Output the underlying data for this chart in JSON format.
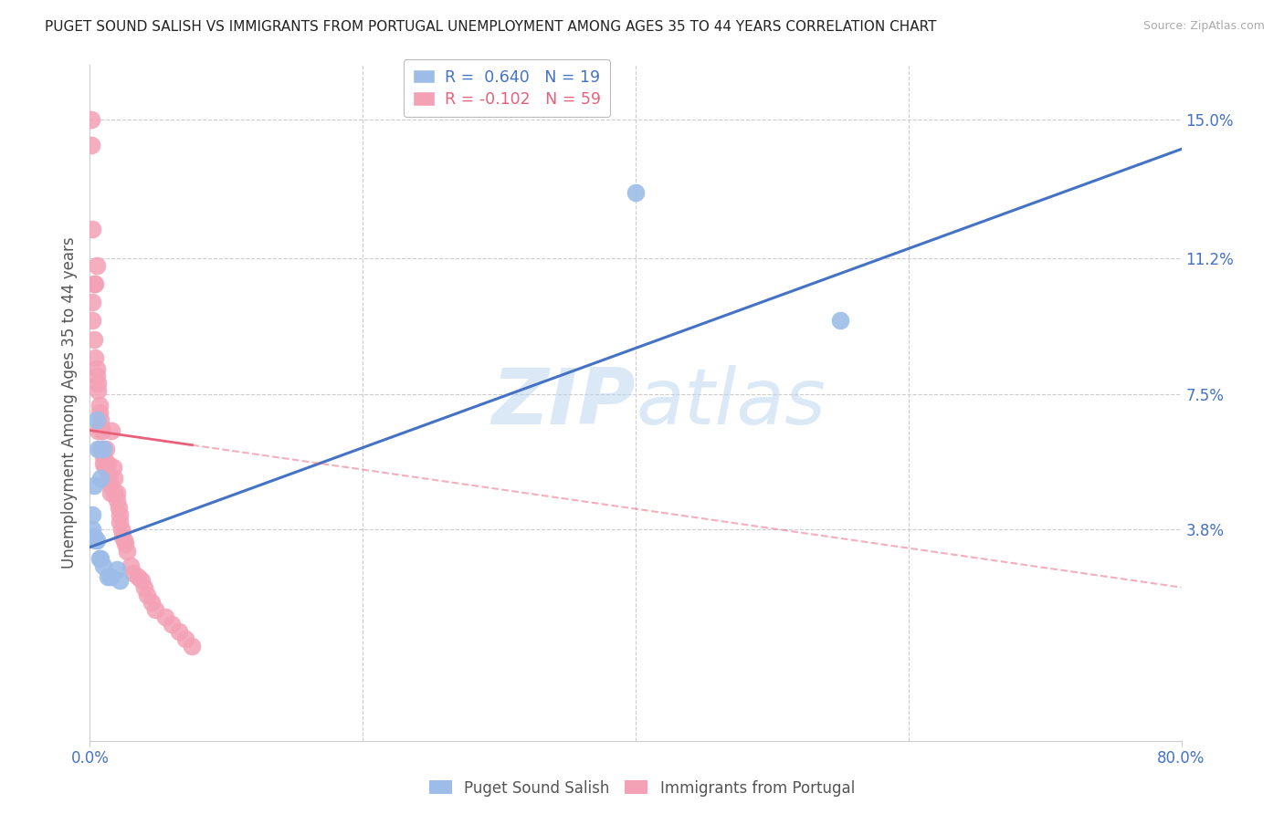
{
  "title": "PUGET SOUND SALISH VS IMMIGRANTS FROM PORTUGAL UNEMPLOYMENT AMONG AGES 35 TO 44 YEARS CORRELATION CHART",
  "source": "Source: ZipAtlas.com",
  "ylabel": "Unemployment Among Ages 35 to 44 years",
  "xmin": 0.0,
  "xmax": 80.0,
  "ymin": -2.0,
  "ymax": 16.5,
  "ytick_vals": [
    3.8,
    7.5,
    11.2,
    15.0
  ],
  "ytick_labels": [
    "3.8%",
    "7.5%",
    "11.2%",
    "15.0%"
  ],
  "xtick_vals": [
    0.0,
    80.0
  ],
  "xtick_labels": [
    "0.0%",
    "80.0%"
  ],
  "legend1_r": "R =  0.640",
  "legend1_n": "N = 19",
  "legend2_r": "R = -0.102",
  "legend2_n": "N = 59",
  "series1_name": "Puget Sound Salish",
  "series2_name": "Immigrants from Portugal",
  "series1_color": "#9dbde8",
  "series2_color": "#f4a0b5",
  "trendline1_color": "#4472c4",
  "trendline2_color": "#e8607a",
  "watermark_zip": "ZIP",
  "watermark_atlas": "atlas",
  "blue_points_x": [
    0.2,
    0.2,
    0.3,
    0.3,
    0.4,
    0.5,
    0.5,
    0.6,
    0.7,
    0.8,
    0.8,
    1.0,
    1.0,
    1.3,
    1.5,
    2.0,
    2.2,
    55.0,
    40.0
  ],
  "blue_points_y": [
    3.8,
    4.2,
    3.6,
    5.0,
    3.5,
    3.5,
    6.8,
    6.0,
    3.0,
    3.0,
    5.2,
    2.8,
    6.0,
    2.5,
    2.5,
    2.7,
    2.4,
    9.5,
    13.0
  ],
  "pink_points_x": [
    0.1,
    0.1,
    0.2,
    0.2,
    0.2,
    0.3,
    0.3,
    0.4,
    0.4,
    0.5,
    0.5,
    0.5,
    0.6,
    0.6,
    0.6,
    0.7,
    0.7,
    0.8,
    0.8,
    0.8,
    0.9,
    0.9,
    1.0,
    1.0,
    1.1,
    1.2,
    1.2,
    1.3,
    1.3,
    1.4,
    1.5,
    1.5,
    1.6,
    1.7,
    1.8,
    1.8,
    2.0,
    2.0,
    2.1,
    2.2,
    2.2,
    2.3,
    2.4,
    2.5,
    2.6,
    2.7,
    3.0,
    3.2,
    3.5,
    3.8,
    4.0,
    4.2,
    4.5,
    4.8,
    5.5,
    6.0,
    6.5,
    7.0,
    7.5
  ],
  "pink_points_y": [
    15.0,
    14.3,
    12.0,
    10.0,
    9.5,
    10.5,
    9.0,
    10.5,
    8.5,
    11.0,
    8.2,
    8.0,
    7.8,
    7.6,
    6.5,
    7.2,
    7.0,
    6.8,
    6.6,
    6.0,
    6.5,
    6.0,
    5.8,
    5.6,
    5.5,
    6.0,
    5.6,
    5.6,
    5.2,
    5.2,
    5.0,
    4.8,
    6.5,
    5.5,
    5.2,
    4.8,
    4.8,
    4.6,
    4.4,
    4.2,
    4.0,
    3.8,
    3.6,
    3.5,
    3.4,
    3.2,
    2.8,
    2.6,
    2.5,
    2.4,
    2.2,
    2.0,
    1.8,
    1.6,
    1.4,
    1.2,
    1.0,
    0.8,
    0.6
  ],
  "blue_trend_x0": 0.0,
  "blue_trend_y0": 3.3,
  "blue_trend_x1": 80.0,
  "blue_trend_y1": 14.2,
  "pink_trend_x0": 0.0,
  "pink_trend_y0": 6.5,
  "pink_trend_x1": 80.0,
  "pink_trend_y1": 2.2,
  "pink_solid_end_x": 7.5,
  "grid_color": "#cccccc",
  "background_color": "#ffffff",
  "tick_color": "#4472c4",
  "axis_color": "#cccccc"
}
